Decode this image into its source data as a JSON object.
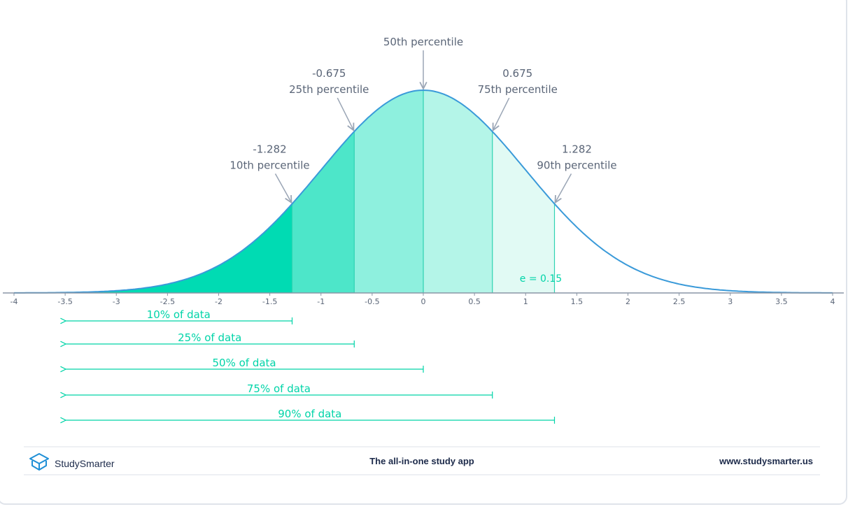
{
  "chart_data": {
    "type": "area",
    "title": "",
    "xlabel": "",
    "ylabel": "",
    "xlim": [
      -4,
      4
    ],
    "x_ticks": [
      "-4",
      "-3.5",
      "-3",
      "-2.5",
      "-2",
      "-1.5",
      "-1",
      "-0.5",
      "0",
      "0.5",
      "1",
      "1.5",
      "2",
      "2.5",
      "3",
      "3.5",
      "4"
    ],
    "curve": "standard normal density",
    "regions": [
      {
        "from": -4,
        "to": -1.282,
        "color": "#00dbb3"
      },
      {
        "from": -1.282,
        "to": -0.675,
        "color": "#4de6c9"
      },
      {
        "from": -0.675,
        "to": 0,
        "color": "#8ef0de"
      },
      {
        "from": 0,
        "to": 0.675,
        "color": "#b4f5e8"
      },
      {
        "from": 0.675,
        "to": 1.282,
        "color": "#e1faf4"
      }
    ],
    "annotations": [
      {
        "x": -1.282,
        "value": "-1.282",
        "label": "10th percentile"
      },
      {
        "x": -0.675,
        "value": "-0.675",
        "label": "25th percentile"
      },
      {
        "x": 0,
        "value": "",
        "label": "50th percentile"
      },
      {
        "x": 0.675,
        "value": "0.675",
        "label": "75th percentile"
      },
      {
        "x": 1.282,
        "value": "1.282",
        "label": "90th percentile"
      }
    ],
    "ranges": [
      {
        "to": -1.282,
        "label": "10% of data"
      },
      {
        "to": -0.675,
        "label": "25% of data"
      },
      {
        "to": 0,
        "label": "50% of data"
      },
      {
        "to": 0.675,
        "label": "75% of data"
      },
      {
        "to": 1.282,
        "label": "90% of data"
      }
    ],
    "inline_label": "e = 0.15",
    "colors": {
      "curve": "#3a9ad9",
      "axis": "#8a95a5",
      "annotation_text": "#5a6577",
      "arrow": "#9aa5b5",
      "range": "#00d4a8"
    }
  },
  "footer": {
    "brand": "StudySmarter",
    "tagline": "The all-in-one study app",
    "website": "www.studysmarter.us"
  }
}
